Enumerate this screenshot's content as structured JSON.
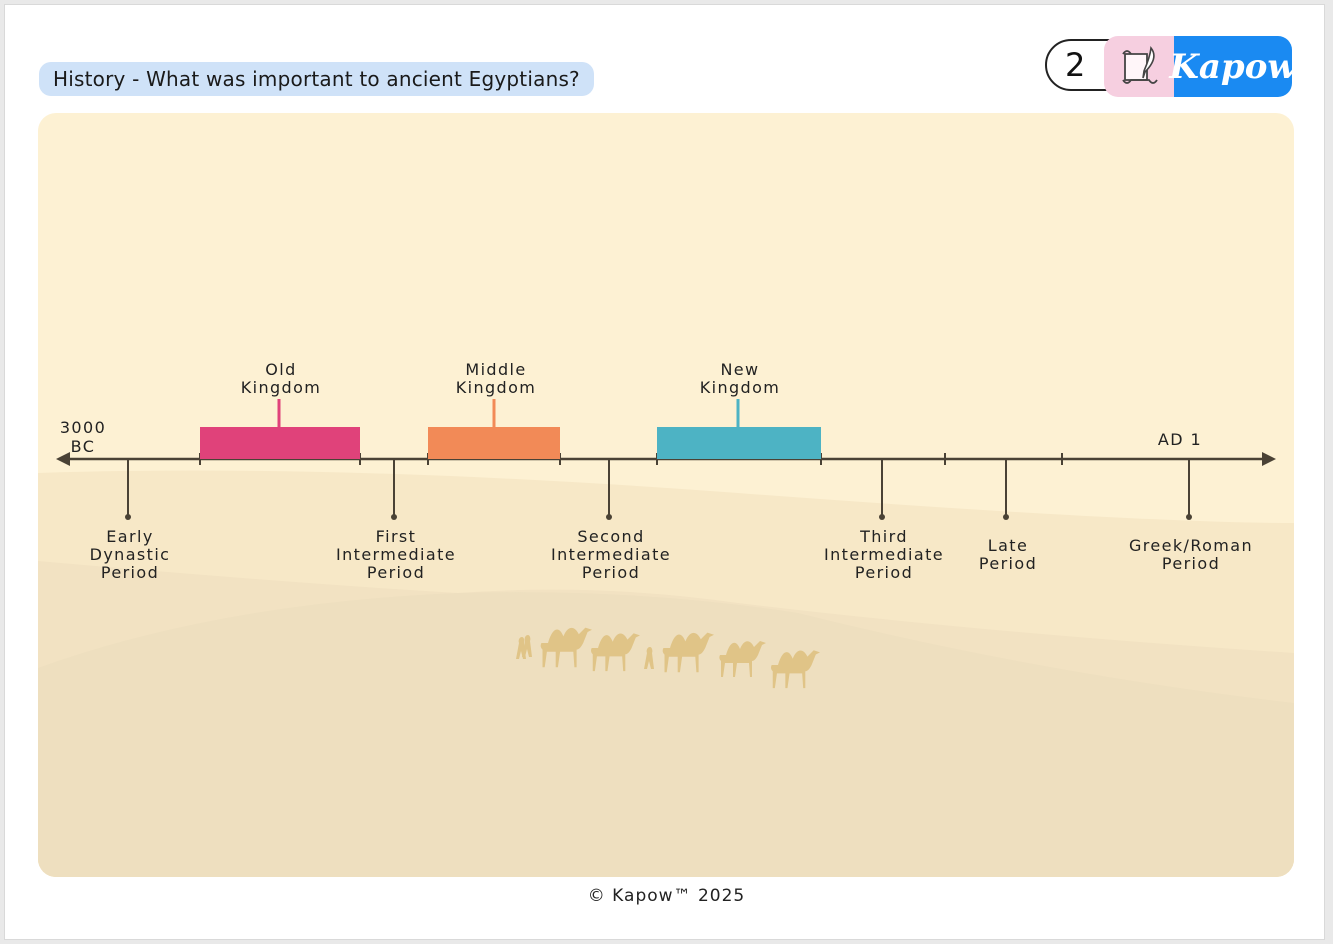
{
  "header": {
    "title": "History - What was important to ancient Egyptians?",
    "lesson_number": "2",
    "brand": "Kapow",
    "icon": "scroll-quill-icon"
  },
  "timeline": {
    "start_label": [
      "3000",
      "BC"
    ],
    "end_label": "AD 1",
    "kingdoms": [
      {
        "lines": [
          "Old",
          "Kingdom"
        ],
        "color": "#e0427a"
      },
      {
        "lines": [
          "Middle",
          "Kingdom"
        ],
        "color": "#f28a57"
      },
      {
        "lines": [
          "New",
          "Kingdom"
        ],
        "color": "#4db3c4"
      }
    ],
    "periods": [
      {
        "lines": [
          "Early",
          "Dynastic",
          "Period"
        ]
      },
      {
        "lines": [
          "First",
          "Intermediate",
          "Period"
        ]
      },
      {
        "lines": [
          "Second",
          "Intermediate",
          "Period"
        ]
      },
      {
        "lines": [
          "Third",
          "Intermediate",
          "Period"
        ]
      },
      {
        "lines": [
          "Late",
          "Period"
        ]
      },
      {
        "lines": [
          "Greek/Roman",
          "Period"
        ]
      }
    ]
  },
  "colors": {
    "panel_bg": "#fdf1d3",
    "dune_light": "#f6e5c3",
    "dune_dark": "#eedfbf",
    "camels": "#e0c487",
    "axis": "#4a4235"
  },
  "footer": "© Kapow™ 2025"
}
